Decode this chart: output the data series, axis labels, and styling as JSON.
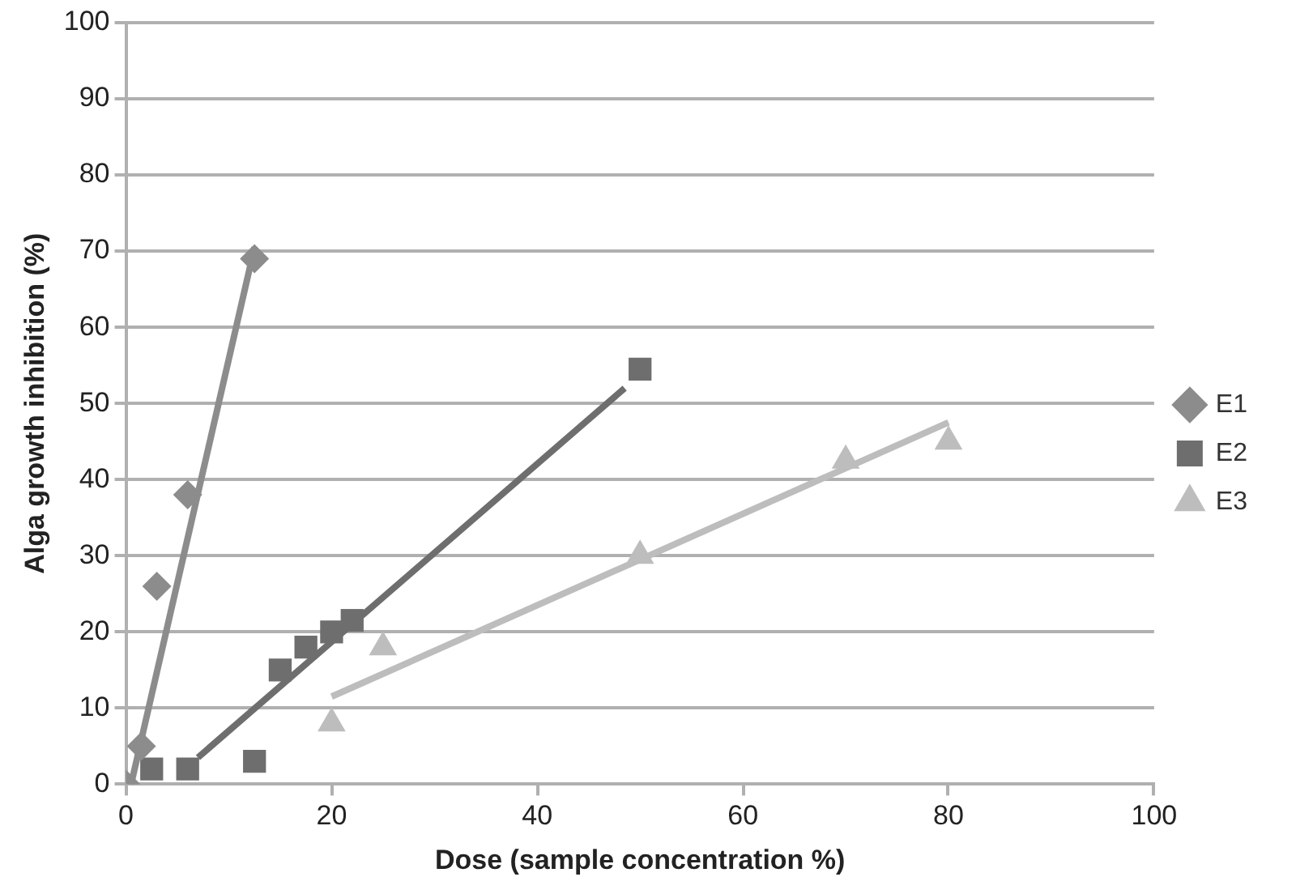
{
  "chart_data": {
    "type": "scatter",
    "xlabel": "Dose (sample concentration %)",
    "ylabel": "Alga growth inhibition (%)",
    "xlim": [
      0,
      100
    ],
    "xticks": [
      0,
      20,
      40,
      60,
      80,
      100
    ],
    "ylim": [
      0,
      100
    ],
    "yticks": [
      0,
      10,
      20,
      30,
      40,
      50,
      60,
      70,
      80,
      90,
      100
    ],
    "grid": "y",
    "legend": "right",
    "series": [
      {
        "name": "E1",
        "color": "#8c8c8c",
        "marker": "diamond",
        "x": [
          0,
          1.5,
          3,
          6,
          12.5
        ],
        "values": [
          0,
          5,
          26,
          38,
          69
        ]
      },
      {
        "name": "E2",
        "color": "#6e6e6e",
        "marker": "square",
        "x": [
          2.5,
          6,
          12.5,
          15,
          17.5,
          20,
          22,
          50
        ],
        "values": [
          2,
          2,
          3,
          15,
          18,
          20,
          21.5,
          54.5
        ]
      },
      {
        "name": "E3",
        "color": "#bdbdbd",
        "marker": "triangle",
        "x": [
          20,
          25,
          50,
          70,
          80
        ],
        "values": [
          8,
          18,
          30,
          42.5,
          45
        ]
      },
      {
        "type": "line",
        "color": "#8c8c8c",
        "marker": "none",
        "x": [
          0.5,
          12.5
        ],
        "values": [
          0,
          70.5
        ]
      },
      {
        "type": "line",
        "color": "#6e6e6e",
        "marker": "none",
        "x": [
          7,
          48.5
        ],
        "values": [
          3.5,
          52
        ]
      },
      {
        "type": "line",
        "color": "#bdbdbd",
        "marker": "none",
        "x": [
          20,
          80
        ],
        "values": [
          11.5,
          47.5
        ]
      }
    ]
  }
}
